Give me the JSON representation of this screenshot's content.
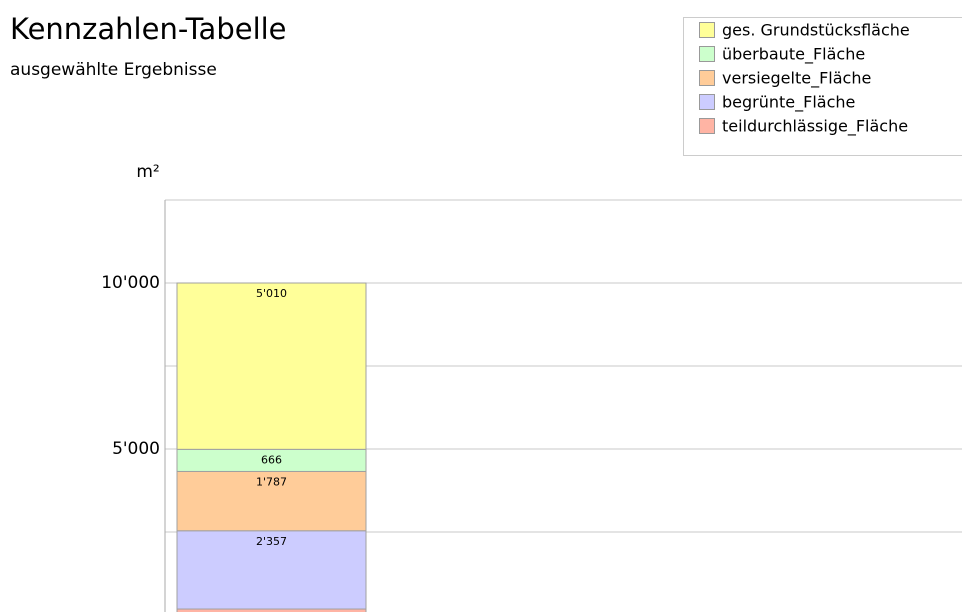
{
  "chart_data": {
    "type": "stacked_bar",
    "title": "Kennzahlen-Tabelle",
    "subtitle": "ausgewählte Ergebnisse",
    "y_label": "m²",
    "categories": [
      null
    ],
    "series": [
      {
        "name": "ges. Grundstücksfläche",
        "color": "#ffff99",
        "values": [
          5010
        ],
        "value_labels": [
          "5'010"
        ]
      },
      {
        "name": "überbaute_Fläche",
        "color": "#ccffcc",
        "values": [
          666
        ],
        "value_labels": [
          "666"
        ]
      },
      {
        "name": "versiegelte_Fläche",
        "color": "#ffcc99",
        "values": [
          1787
        ],
        "value_labels": [
          "1'787"
        ]
      },
      {
        "name": "begrünte_Fläche",
        "color": "#ccccff",
        "values": [
          2357
        ],
        "value_labels": [
          "2'357"
        ]
      },
      {
        "name": "teildurchlässige_Fläche",
        "color": "#ffb4a4",
        "values": [
          180
        ],
        "value_labels": [
          null
        ]
      }
    ],
    "ylim": [
      0,
      12500
    ],
    "yticks": [
      {
        "value": 5000,
        "label": "5'000"
      },
      {
        "value": 10000,
        "label": "10'000"
      }
    ],
    "minor_yticks": [
      2500,
      7500,
      12500
    ],
    "grid": true,
    "legend": "top-right"
  }
}
